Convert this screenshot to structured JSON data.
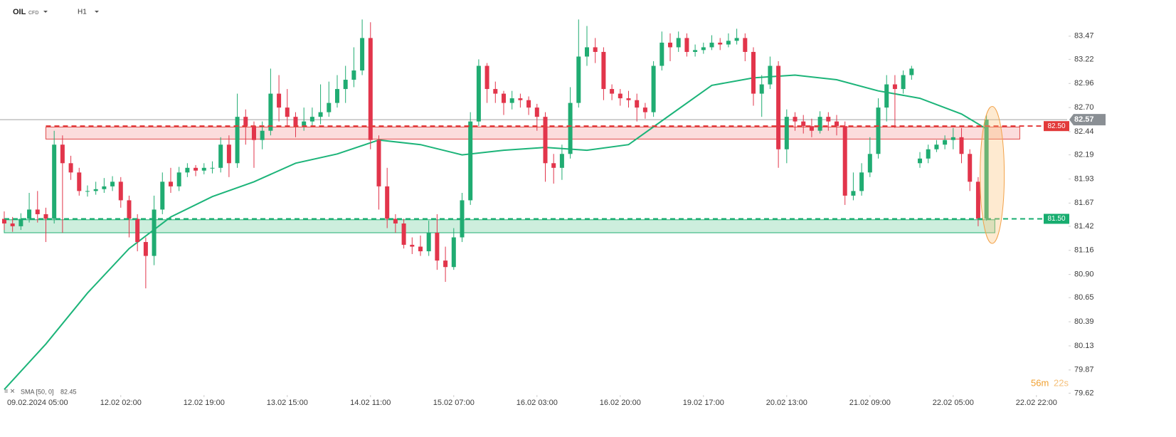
{
  "header": {
    "symbol": "OIL",
    "symbol_type": "CFD",
    "timeframe": "H1"
  },
  "chart_data": {
    "type": "candlestick",
    "open": [
      81.5,
      81.45,
      81.42,
      81.5,
      81.6,
      81.55,
      81.5,
      82.3,
      82.1,
      82.0,
      81.8,
      81.8,
      81.82,
      81.85,
      81.9,
      81.7,
      81.5,
      81.25,
      81.1,
      81.6,
      81.9,
      81.85,
      82.0,
      82.05,
      82.02,
      82.05,
      82.05,
      82.3,
      82.1,
      82.6,
      82.5,
      82.35,
      82.45,
      82.85,
      82.7,
      82.6,
      82.5,
      82.55,
      82.6,
      82.65,
      82.75,
      82.9,
      83.0,
      83.1,
      83.45,
      82.35,
      81.85,
      81.5,
      81.45,
      81.22,
      81.2,
      81.15,
      81.35,
      81.05,
      80.98,
      81.3,
      81.7,
      82.55,
      83.15,
      82.9,
      82.85,
      82.75,
      82.8,
      82.78,
      82.7,
      82.6,
      82.1,
      82.05,
      82.2,
      82.75,
      83.25,
      83.35,
      83.3,
      82.9,
      82.85,
      82.8,
      82.78,
      82.7,
      82.65,
      83.15,
      83.4,
      83.35,
      83.45,
      83.3,
      83.32,
      83.35,
      83.4,
      83.38,
      83.42,
      83.45,
      83.3,
      82.85,
      82.95,
      83.15,
      82.25,
      82.6,
      82.55,
      82.5,
      82.45,
      82.6,
      82.55,
      82.5,
      81.75,
      81.8,
      82.0,
      82.2,
      82.7,
      82.95,
      82.9,
      83.05,
      82.1,
      82.15,
      82.25,
      82.3,
      82.35,
      82.38,
      82.2,
      81.9,
      81.5
    ],
    "high": [
      81.58,
      81.52,
      81.56,
      81.78,
      81.8,
      81.62,
      82.45,
      82.4,
      82.18,
      82.05,
      81.86,
      81.9,
      81.94,
      81.96,
      81.95,
      81.75,
      81.55,
      81.3,
      81.75,
      82.0,
      82.05,
      82.06,
      82.1,
      82.08,
      82.1,
      82.12,
      82.38,
      82.4,
      82.85,
      82.68,
      82.55,
      82.55,
      83.12,
      83.05,
      82.9,
      82.65,
      82.7,
      82.7,
      82.95,
      82.98,
      83.05,
      83.15,
      83.35,
      83.65,
      83.62,
      82.4,
      82.05,
      81.55,
      81.5,
      81.3,
      81.32,
      81.48,
      81.55,
      81.2,
      81.4,
      81.78,
      82.65,
      83.22,
      83.18,
      82.98,
      82.88,
      82.88,
      82.85,
      82.82,
      82.74,
      82.65,
      82.2,
      82.3,
      82.92,
      83.65,
      83.58,
      83.45,
      83.35,
      82.95,
      82.9,
      82.88,
      82.85,
      82.75,
      83.2,
      83.52,
      83.5,
      83.52,
      83.5,
      83.38,
      83.4,
      83.48,
      83.45,
      83.5,
      83.55,
      83.5,
      83.35,
      83.05,
      83.25,
      83.2,
      82.68,
      82.65,
      82.62,
      82.58,
      82.66,
      82.65,
      82.62,
      82.55,
      82.0,
      82.1,
      82.38,
      82.8,
      83.05,
      83.05,
      83.1,
      83.15,
      82.22,
      82.3,
      82.35,
      82.4,
      82.48,
      82.48,
      82.25,
      81.95,
      82.62
    ],
    "low": [
      81.38,
      81.36,
      81.38,
      81.46,
      81.46,
      81.25,
      81.45,
      81.35,
      81.92,
      81.75,
      81.74,
      81.76,
      81.78,
      81.8,
      81.62,
      81.3,
      81.15,
      80.75,
      81.0,
      81.55,
      81.78,
      81.8,
      81.95,
      81.96,
      81.98,
      81.99,
      82.0,
      81.95,
      82.05,
      82.3,
      82.05,
      82.25,
      82.4,
      82.55,
      82.5,
      82.38,
      82.45,
      82.5,
      82.52,
      82.6,
      82.7,
      82.75,
      82.92,
      83.05,
      82.25,
      81.6,
      81.4,
      81.35,
      81.18,
      81.12,
      81.1,
      81.1,
      80.95,
      80.82,
      80.95,
      81.25,
      81.65,
      82.5,
      82.75,
      82.75,
      82.62,
      82.68,
      82.7,
      82.62,
      82.45,
      81.9,
      81.88,
      81.92,
      82.15,
      82.7,
      83.15,
      83.18,
      82.78,
      82.78,
      82.72,
      82.7,
      82.55,
      82.58,
      82.6,
      83.1,
      83.2,
      83.3,
      83.25,
      83.25,
      83.28,
      83.32,
      83.32,
      83.35,
      83.38,
      83.2,
      82.72,
      82.6,
      82.9,
      82.05,
      82.1,
      82.45,
      82.42,
      82.38,
      82.42,
      82.45,
      82.4,
      81.65,
      81.7,
      81.75,
      81.95,
      82.15,
      82.55,
      82.48,
      82.85,
      83.0,
      82.05,
      82.1,
      82.22,
      82.25,
      82.25,
      82.1,
      81.8,
      81.42,
      81.48
    ],
    "close": [
      81.45,
      81.42,
      81.5,
      81.6,
      81.55,
      81.5,
      82.3,
      82.1,
      82.0,
      81.8,
      81.8,
      81.82,
      81.85,
      81.9,
      81.7,
      81.5,
      81.25,
      81.1,
      81.6,
      81.9,
      81.85,
      82.0,
      82.05,
      82.02,
      82.05,
      82.05,
      82.3,
      82.1,
      82.6,
      82.5,
      82.35,
      82.45,
      82.85,
      82.7,
      82.6,
      82.5,
      82.55,
      82.6,
      82.65,
      82.75,
      82.9,
      83.0,
      83.1,
      83.45,
      82.35,
      81.85,
      81.5,
      81.45,
      81.22,
      81.2,
      81.15,
      81.35,
      81.05,
      80.98,
      81.3,
      81.7,
      82.55,
      83.15,
      82.9,
      82.85,
      82.75,
      82.8,
      82.78,
      82.7,
      82.6,
      82.1,
      82.05,
      82.2,
      82.75,
      83.25,
      83.35,
      83.3,
      82.9,
      82.85,
      82.8,
      82.78,
      82.7,
      82.65,
      83.15,
      83.4,
      83.35,
      83.45,
      83.3,
      83.32,
      83.35,
      83.4,
      83.38,
      83.42,
      83.45,
      83.3,
      82.85,
      82.95,
      83.15,
      82.25,
      82.6,
      82.55,
      82.5,
      82.45,
      82.6,
      82.55,
      82.5,
      81.75,
      81.8,
      82.0,
      82.2,
      82.7,
      82.95,
      82.9,
      83.05,
      83.12,
      82.15,
      82.25,
      82.3,
      82.35,
      82.38,
      82.2,
      81.9,
      81.5,
      82.57
    ],
    "up_color": "#20ac72",
    "down_color": "#e2354b",
    "ylim": [
      79.6,
      83.86
    ],
    "yticks": [
      83.47,
      83.22,
      82.96,
      {
        "value": 82.7,
        "label": "82.70"
      },
      82.44,
      82.19,
      81.93,
      81.67,
      81.42,
      81.16,
      {
        "value": 80.9,
        "label": "80.90"
      },
      80.65,
      80.39,
      80.13,
      79.87,
      79.62
    ],
    "xlim": [
      -0.51,
      127.69
    ],
    "xticks": [
      {
        "value": 4,
        "label": "09.02.2024 05:00"
      },
      {
        "value": 14,
        "label": "12.02 02:00"
      },
      {
        "value": 24,
        "label": "12.02 19:00"
      },
      {
        "value": 34,
        "label": "13.02 15:00"
      },
      {
        "value": 44,
        "label": "14.02 11:00"
      },
      {
        "value": 54,
        "label": "15.02 07:00"
      },
      {
        "value": 64,
        "label": "16.02 03:00"
      },
      {
        "value": 74,
        "label": "16.02 20:00"
      },
      {
        "value": 84,
        "label": "19.02 17:00"
      },
      {
        "value": 94,
        "label": "20.02 13:00"
      },
      {
        "value": 104,
        "label": "21.02 09:00"
      },
      {
        "value": 114,
        "label": "22.02 05:00"
      },
      {
        "value": 124,
        "label": "22.02 22:00"
      }
    ],
    "indicator": {
      "name": "SMA [50, 0]",
      "last": 82.45,
      "color": "#1cb479",
      "x": [
        0,
        5,
        10,
        15,
        20,
        25,
        30,
        35,
        40,
        45,
        50,
        55,
        60,
        65,
        70,
        75,
        80,
        85,
        90,
        95,
        100,
        105,
        110,
        115,
        118
      ],
      "values": [
        79.66,
        80.15,
        80.7,
        81.18,
        81.52,
        81.74,
        81.9,
        82.1,
        82.2,
        82.35,
        82.3,
        82.19,
        82.24,
        82.27,
        82.24,
        82.3,
        82.62,
        82.94,
        83.02,
        83.05,
        83.0,
        82.88,
        82.8,
        82.63,
        82.47
      ]
    },
    "zones": [
      {
        "low": 82.36,
        "high": 82.49,
        "start": 5,
        "end": 122,
        "color": "#e04a4a",
        "fill": "#fbdcdc"
      },
      {
        "low": 81.35,
        "high": 81.49,
        "start": 0,
        "end": 119,
        "color": "#1fae73",
        "fill": "#cdeedd"
      }
    ],
    "levels": [
      {
        "value": 82.5,
        "label": "82.50",
        "color": "#e23a3a"
      },
      {
        "value": 81.5,
        "label": "81.50",
        "color": "#17ad6f"
      }
    ],
    "last_price": 82.57,
    "timer": {
      "minutes": "56m",
      "seconds": "22s"
    }
  }
}
